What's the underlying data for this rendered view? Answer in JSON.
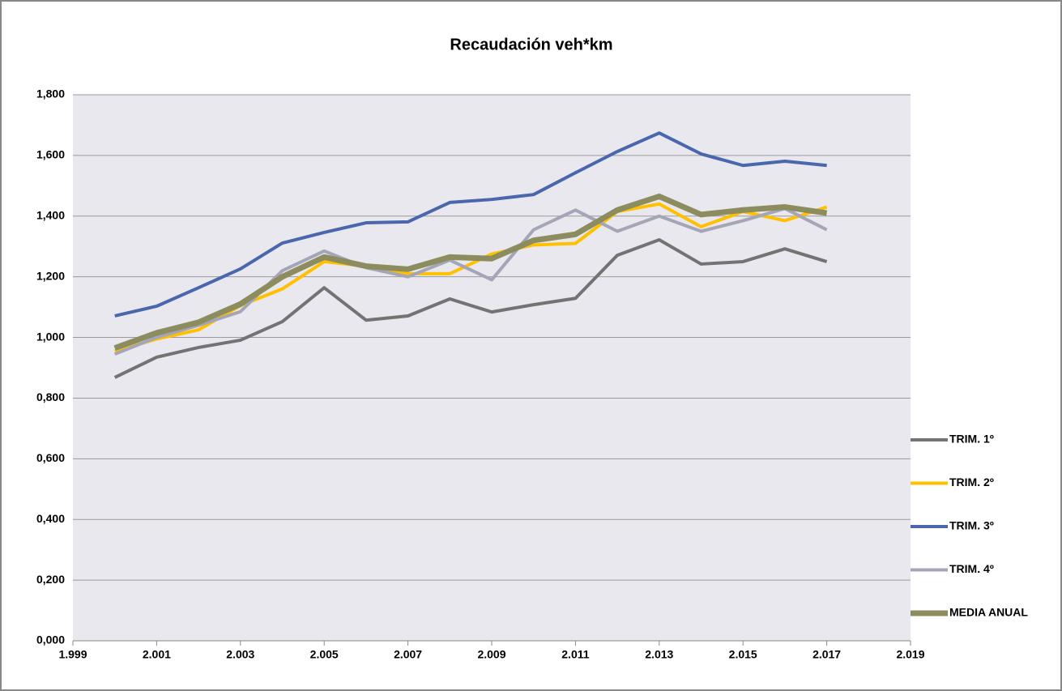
{
  "chart_data": {
    "type": "line",
    "title": "Recaudación veh*km",
    "x": [
      2000,
      2001,
      2002,
      2003,
      2004,
      2005,
      2006,
      2007,
      2008,
      2009,
      2010,
      2011,
      2012,
      2013,
      2014,
      2015,
      2016,
      2017
    ],
    "series": [
      {
        "name": "TRIM. 1º",
        "color": "#737373",
        "line_width": 4,
        "values": [
          0.868,
          0.935,
          0.967,
          0.991,
          1.052,
          1.164,
          1.057,
          1.071,
          1.127,
          1.084,
          1.108,
          1.129,
          1.271,
          1.322,
          1.242,
          1.25,
          1.292,
          1.25
        ]
      },
      {
        "name": "TRIM. 2º",
        "color": "#ffc000",
        "line_width": 4,
        "values": [
          0.955,
          0.995,
          1.025,
          1.105,
          1.16,
          1.25,
          1.235,
          1.21,
          1.21,
          1.275,
          1.305,
          1.31,
          1.415,
          1.44,
          1.365,
          1.415,
          1.385,
          1.43
        ]
      },
      {
        "name": "TRIM. 3º",
        "color": "#4a66ac",
        "line_width": 4,
        "values": [
          1.071,
          1.103,
          1.164,
          1.226,
          1.311,
          1.346,
          1.378,
          1.381,
          1.445,
          1.455,
          1.471,
          1.543,
          1.613,
          1.674,
          1.605,
          1.567,
          1.581,
          1.567
        ]
      },
      {
        "name": "TRIM. 4º",
        "color": "#a5a5b8",
        "line_width": 4,
        "values": [
          0.945,
          1.0,
          1.04,
          1.085,
          1.22,
          1.285,
          1.23,
          1.2,
          1.255,
          1.19,
          1.355,
          1.42,
          1.35,
          1.4,
          1.35,
          1.385,
          1.425,
          1.355
        ]
      },
      {
        "name": "MEDIA ANUAL",
        "color": "#8c8c5f",
        "line_width": 7,
        "values": [
          0.965,
          1.015,
          1.05,
          1.11,
          1.2,
          1.265,
          1.235,
          1.225,
          1.265,
          1.26,
          1.32,
          1.34,
          1.42,
          1.465,
          1.405,
          1.42,
          1.43,
          1.41
        ]
      }
    ],
    "xlim": [
      1999,
      2019
    ],
    "xticks": [
      {
        "value": 1999,
        "label": "1.999"
      },
      {
        "value": 2001,
        "label": "2.001"
      },
      {
        "value": 2003,
        "label": "2.003"
      },
      {
        "value": 2005,
        "label": "2.005"
      },
      {
        "value": 2007,
        "label": "2.007"
      },
      {
        "value": 2009,
        "label": "2.009"
      },
      {
        "value": 2011,
        "label": "2.011"
      },
      {
        "value": 2013,
        "label": "2.013"
      },
      {
        "value": 2015,
        "label": "2.015"
      },
      {
        "value": 2017,
        "label": "2.017"
      },
      {
        "value": 2019,
        "label": "2.019"
      }
    ],
    "ylim": [
      0,
      1.8
    ],
    "yticks": [
      {
        "value": 0,
        "label": "0,000"
      },
      {
        "value": 0.2,
        "label": "0,200"
      },
      {
        "value": 0.4,
        "label": "0,400"
      },
      {
        "value": 0.6,
        "label": "0,600"
      },
      {
        "value": 0.8,
        "label": "0,800"
      },
      {
        "value": 1.0,
        "label": "1,000"
      },
      {
        "value": 1.2,
        "label": "1,200"
      },
      {
        "value": 1.4,
        "label": "1,400"
      },
      {
        "value": 1.6,
        "label": "1,600"
      },
      {
        "value": 1.8,
        "label": "1,800"
      }
    ],
    "grid": true,
    "legend": "right"
  }
}
